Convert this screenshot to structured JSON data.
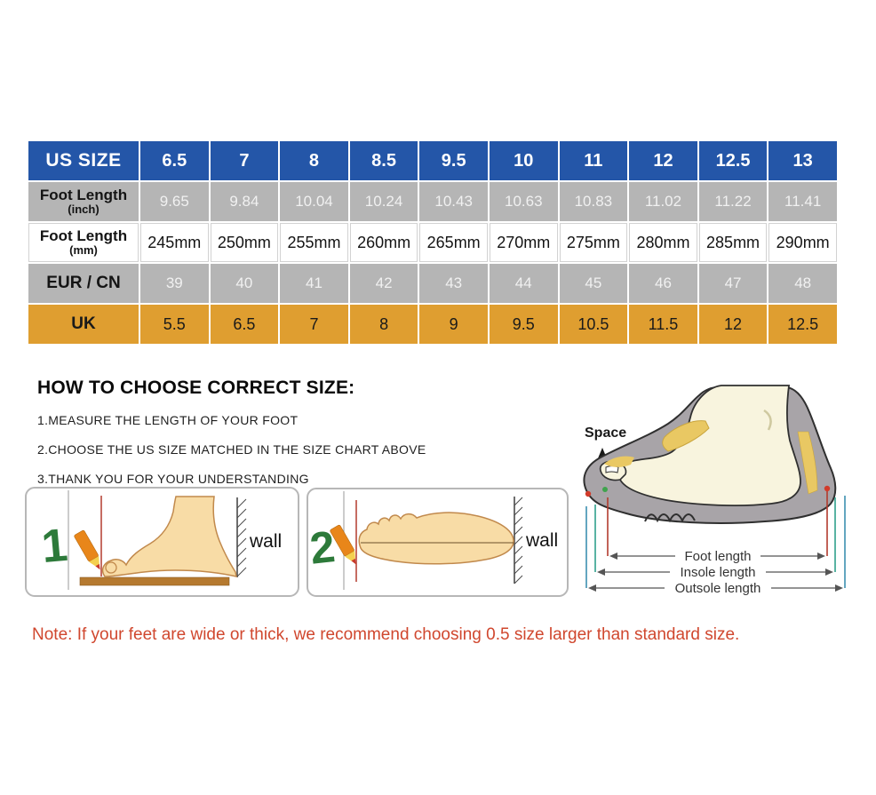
{
  "page": {
    "background": "#ffffff"
  },
  "chart_data": {
    "type": "table",
    "title": "Shoe size conversion chart",
    "rows": [
      {
        "key": "us",
        "label": "US SIZE",
        "sublabel": "",
        "style": "row-blue",
        "values": [
          "6.5",
          "7",
          "8",
          "8.5",
          "9.5",
          "10",
          "11",
          "12",
          "12.5",
          "13"
        ]
      },
      {
        "key": "inch",
        "label": "Foot Length",
        "sublabel": "(inch)",
        "style": "row-gray",
        "values": [
          "9.65",
          "9.84",
          "10.04",
          "10.24",
          "10.43",
          "10.63",
          "10.83",
          "11.02",
          "11.22",
          "11.41"
        ]
      },
      {
        "key": "mm",
        "label": "Foot Length",
        "sublabel": "(mm)",
        "style": "row-white",
        "values": [
          "245mm",
          "250mm",
          "255mm",
          "260mm",
          "265mm",
          "270mm",
          "275mm",
          "280mm",
          "285mm",
          "290mm"
        ]
      },
      {
        "key": "eur",
        "label": "EUR / CN",
        "sublabel": "",
        "style": "row-gray",
        "values": [
          "39",
          "40",
          "41",
          "42",
          "43",
          "44",
          "45",
          "46",
          "47",
          "48"
        ]
      },
      {
        "key": "uk",
        "label": "UK",
        "sublabel": "",
        "style": "row-orange",
        "values": [
          "5.5",
          "6.5",
          "7",
          "8",
          "9",
          "9.5",
          "10.5",
          "11.5",
          "12",
          "12.5"
        ]
      }
    ]
  },
  "instructions": {
    "heading": "HOW TO CHOOSE CORRECT SIZE:",
    "steps": [
      "1.MEASURE THE LENGTH OF YOUR FOOT",
      "2.CHOOSE THE US SIZE MATCHED IN THE SIZE CHART ABOVE",
      "3.THANK YOU FOR YOUR UNDERSTANDING"
    ]
  },
  "diagrams": {
    "step1": {
      "number": "1",
      "wall_label": "wall"
    },
    "step2": {
      "number": "2",
      "wall_label": "wall"
    },
    "foot_diagram": {
      "space_label": "Space",
      "measurements": [
        "Foot length",
        "Insole length",
        "Outsole length"
      ]
    }
  },
  "note": {
    "text": "Note: If your feet are wide or thick, we recommend choosing 0.5 size larger than standard size."
  },
  "colors": {
    "header_blue": "#2456A8",
    "row_gray": "#B5B5B5",
    "row_orange": "#DF9E30",
    "note_red": "#D0472E",
    "numeral_green": "#2D7A3A"
  }
}
